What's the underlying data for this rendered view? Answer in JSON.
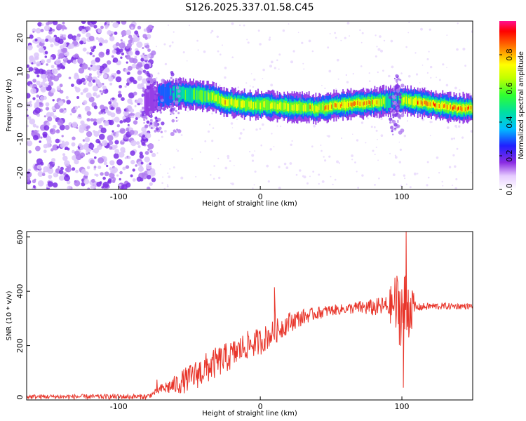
{
  "title": "S126.2025.337.01.58.C45",
  "chart_data": [
    {
      "type": "heatmap",
      "xlabel": "Height of straight line (km)",
      "ylabel": "Frequency (Hz)",
      "xlim": [
        -165,
        150
      ],
      "ylim": [
        -25,
        25
      ],
      "xticks": [
        -100,
        0,
        100
      ],
      "yticks": [
        -20,
        -10,
        0,
        10,
        20
      ],
      "colorbar": {
        "label": "Normalized spectral amplitude",
        "range": [
          0,
          1
        ],
        "ticks": [
          0.0,
          0.2,
          0.4,
          0.6,
          0.8
        ],
        "tick_labels": [
          "0.0",
          "0.2",
          "0.4",
          "0.6",
          "0.8"
        ],
        "colormap": "rainbow"
      },
      "colors": {
        "noise": "#7b2fe6",
        "ridge_core": "#ff2020"
      },
      "ridge": {
        "x": [
          -82,
          -75,
          -65,
          -55,
          -45,
          -35,
          -25,
          -15,
          -5,
          5,
          15,
          25,
          40,
          55,
          70,
          85,
          95,
          100,
          110,
          125,
          140,
          150
        ],
        "freq": [
          1,
          2,
          3.5,
          3.5,
          3,
          2.5,
          1,
          0.5,
          0,
          0,
          -0.5,
          -0.5,
          -1,
          0,
          0.5,
          1,
          1.5,
          1.5,
          1,
          0,
          -1,
          -1
        ],
        "amplitude": [
          0.2,
          0.3,
          0.4,
          0.55,
          0.6,
          0.7,
          0.8,
          0.75,
          0.7,
          0.75,
          0.8,
          0.75,
          0.8,
          0.85,
          0.85,
          0.8,
          0.4,
          0.7,
          0.85,
          0.9,
          0.9,
          0.9
        ]
      },
      "noise_region": [
        -165,
        -75
      ]
    },
    {
      "type": "line",
      "xlabel": "Height of straight line (km)",
      "ylabel": "SNR (10 * v/v)",
      "xlim": [
        -165,
        150
      ],
      "ylim": [
        0,
        620
      ],
      "xticks": [
        -100,
        0,
        100
      ],
      "yticks": [
        0,
        200,
        400,
        600
      ],
      "color": "#e8352a",
      "envelope": {
        "x": [
          -165,
          -80,
          -75,
          -70,
          -60,
          -50,
          -40,
          -30,
          -20,
          -10,
          0,
          10,
          20,
          30,
          40,
          50,
          60,
          70,
          80,
          90,
          95,
          100,
          105,
          110,
          120,
          130,
          140,
          150
        ],
        "y": [
          12,
          12,
          25,
          40,
          55,
          80,
          110,
          140,
          165,
          200,
          215,
          250,
          285,
          305,
          320,
          330,
          335,
          340,
          340,
          345,
          350,
          330,
          345,
          340,
          345,
          345,
          345,
          345
        ]
      },
      "spread": {
        "x": [
          -165,
          -75,
          -55,
          -40,
          -20,
          0,
          20,
          35,
          60,
          90,
          96,
          104,
          110,
          150
        ],
        "y": [
          8,
          10,
          45,
          60,
          55,
          50,
          40,
          25,
          18,
          40,
          130,
          150,
          15,
          10
        ]
      },
      "annotated_peaks": [
        {
          "x": 103,
          "y": 620
        },
        {
          "x": 101,
          "y": 45
        },
        {
          "x": 10,
          "y": 415
        },
        {
          "x": -73,
          "y": 75
        }
      ]
    }
  ]
}
